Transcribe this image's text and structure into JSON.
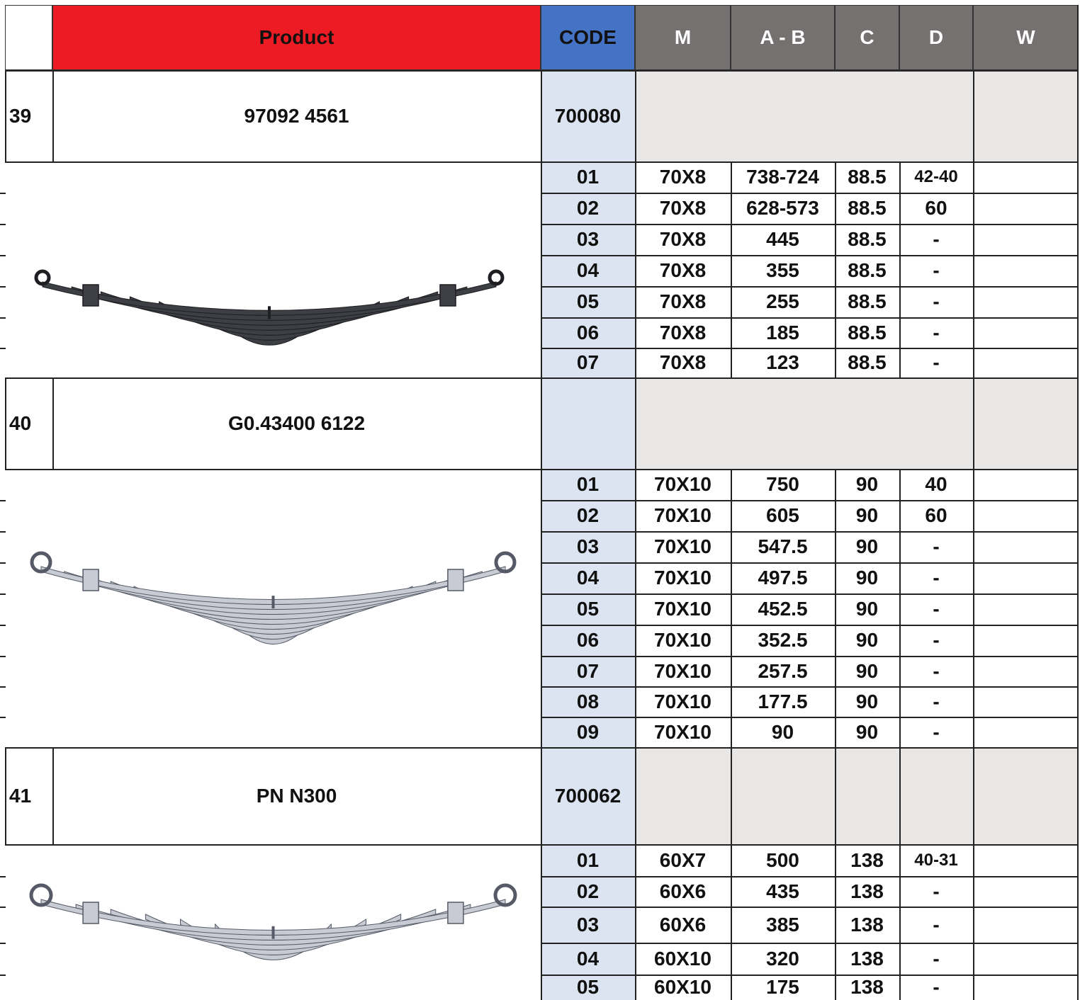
{
  "header": {
    "product": "Product",
    "code": "CODE",
    "m": "M",
    "ab": "A - B",
    "c": "C",
    "d": "D",
    "w": "W"
  },
  "colors": {
    "product_header": "#ed1c24",
    "code_header": "#4472c4",
    "dim_header": "#767171",
    "code_column": "#dce4f1",
    "product_row_fill": "#e8e7e5"
  },
  "products": [
    {
      "no": "39",
      "name": "97092 4561",
      "code": "700080",
      "image": "leaf-spring-dark-icon",
      "leaves": [
        {
          "code": "01",
          "m": "70X8",
          "ab": "738-724",
          "c": "88.5",
          "d": "42-40",
          "w": ""
        },
        {
          "code": "02",
          "m": "70X8",
          "ab": "628-573",
          "c": "88.5",
          "d": "60",
          "w": ""
        },
        {
          "code": "03",
          "m": "70X8",
          "ab": "445",
          "c": "88.5",
          "d": "-",
          "w": ""
        },
        {
          "code": "04",
          "m": "70X8",
          "ab": "355",
          "c": "88.5",
          "d": "-",
          "w": ""
        },
        {
          "code": "05",
          "m": "70X8",
          "ab": "255",
          "c": "88.5",
          "d": "-",
          "w": ""
        },
        {
          "code": "06",
          "m": "70X8",
          "ab": "185",
          "c": "88.5",
          "d": "-",
          "w": ""
        },
        {
          "code": "07",
          "m": "70X8",
          "ab": "123",
          "c": "88.5",
          "d": "-",
          "w": ""
        }
      ]
    },
    {
      "no": "40",
      "name": "G0.43400 6122",
      "code": "",
      "image": "leaf-spring-light-icon",
      "leaves": [
        {
          "code": "01",
          "m": "70X10",
          "ab": "750",
          "c": "90",
          "d": "40",
          "w": ""
        },
        {
          "code": "02",
          "m": "70X10",
          "ab": "605",
          "c": "90",
          "d": "60",
          "w": ""
        },
        {
          "code": "03",
          "m": "70X10",
          "ab": "547.5",
          "c": "90",
          "d": "-",
          "w": ""
        },
        {
          "code": "04",
          "m": "70X10",
          "ab": "497.5",
          "c": "90",
          "d": "-",
          "w": ""
        },
        {
          "code": "05",
          "m": "70X10",
          "ab": "452.5",
          "c": "90",
          "d": "-",
          "w": ""
        },
        {
          "code": "06",
          "m": "70X10",
          "ab": "352.5",
          "c": "90",
          "d": "-",
          "w": ""
        },
        {
          "code": "07",
          "m": "70X10",
          "ab": "257.5",
          "c": "90",
          "d": "-",
          "w": ""
        },
        {
          "code": "08",
          "m": "70X10",
          "ab": "177.5",
          "c": "90",
          "d": "-",
          "w": ""
        },
        {
          "code": "09",
          "m": "70X10",
          "ab": "90",
          "c": "90",
          "d": "-",
          "w": ""
        }
      ]
    },
    {
      "no": "41",
      "name": "PN N300",
      "code": "700062",
      "image": "leaf-spring-light-icon",
      "leaves": [
        {
          "code": "01",
          "m": "60X7",
          "ab": "500",
          "c": "138",
          "d": "40-31",
          "w": ""
        },
        {
          "code": "02",
          "m": "60X6",
          "ab": "435",
          "c": "138",
          "d": "-",
          "w": ""
        },
        {
          "code": "03",
          "m": "60X6",
          "ab": "385",
          "c": "138",
          "d": "-",
          "w": ""
        },
        {
          "code": "04",
          "m": "60X10",
          "ab": "320",
          "c": "138",
          "d": "-",
          "w": ""
        },
        {
          "code": "05",
          "m": "60X10",
          "ab": "175",
          "c": "138",
          "d": "-",
          "w": ""
        }
      ]
    }
  ]
}
